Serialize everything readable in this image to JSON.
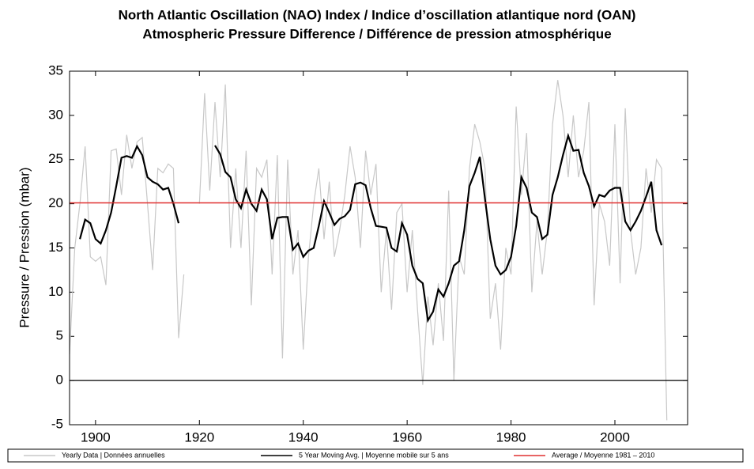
{
  "chart_data": {
    "type": "line",
    "title": "North Atlantic Oscillation (NAO) Index / Indice d’oscillation atlantique nord (OAN)",
    "subtitle": "Atmospheric Pressure Difference / Différence de pression atmosphérique",
    "y_label": "Pressure / Pression (mbar)",
    "x": [
      1895,
      1896,
      1897,
      1898,
      1899,
      1900,
      1901,
      1902,
      1903,
      1904,
      1905,
      1906,
      1907,
      1908,
      1909,
      1910,
      1911,
      1912,
      1913,
      1914,
      1915,
      1916,
      1917,
      1918,
      1919,
      1920,
      1921,
      1922,
      1923,
      1924,
      1925,
      1926,
      1927,
      1928,
      1929,
      1930,
      1931,
      1932,
      1933,
      1934,
      1935,
      1936,
      1937,
      1938,
      1939,
      1940,
      1941,
      1942,
      1943,
      1944,
      1945,
      1946,
      1947,
      1948,
      1949,
      1950,
      1951,
      1952,
      1953,
      1954,
      1955,
      1956,
      1957,
      1958,
      1959,
      1960,
      1961,
      1962,
      1963,
      1964,
      1965,
      1966,
      1967,
      1968,
      1969,
      1970,
      1971,
      1972,
      1973,
      1974,
      1975,
      1976,
      1977,
      1978,
      1979,
      1980,
      1981,
      1982,
      1983,
      1984,
      1985,
      1986,
      1987,
      1988,
      1989,
      1990,
      1991,
      1992,
      1993,
      1994,
      1995,
      1996,
      1997,
      1998,
      1999,
      2000,
      2001,
      2002,
      2003,
      2004,
      2005,
      2006,
      2007,
      2008,
      2009,
      2010
    ],
    "series": [
      {
        "name": "Yearly Data | Données annuelles",
        "color": "#c8c8c8",
        "values": [
          3,
          15,
          20,
          26.5,
          14,
          13.5,
          14,
          10.8,
          26,
          26.2,
          21,
          27.8,
          24,
          27,
          27.5,
          20,
          12.5,
          24,
          23.5,
          24.5,
          24,
          4.8,
          12,
          null,
          null,
          20,
          32.5,
          21.5,
          31.5,
          23,
          33.5,
          15,
          24,
          15,
          26,
          8.5,
          24,
          23,
          25,
          12,
          25.5,
          2.5,
          25,
          12,
          17,
          3.5,
          14,
          20,
          24,
          16,
          22.5,
          14,
          17,
          21,
          26.5,
          23,
          15,
          26,
          21,
          24.5,
          10,
          17,
          8,
          19,
          20,
          10,
          17,
          8,
          -0.5,
          9.5,
          4,
          11,
          4.5,
          21.5,
          0,
          14,
          12,
          24,
          29,
          27,
          24,
          7,
          11,
          3.5,
          15,
          12,
          31,
          21,
          28,
          10,
          18,
          12,
          17,
          29,
          34,
          30,
          23,
          30,
          23,
          26,
          31.5,
          8.5,
          20,
          18,
          13,
          29,
          11,
          30.8,
          17,
          12,
          15,
          24,
          19,
          25,
          24,
          -4.5
        ]
      },
      {
        "name": "5 Year Moving Avg. | Moyenne mobile sur 5 ans",
        "color": "#000000",
        "values": [
          null,
          null,
          16,
          18.2,
          17.8,
          16,
          15.5,
          17,
          19,
          22,
          25.2,
          25.4,
          25.2,
          26.5,
          25.5,
          23,
          22.5,
          22.2,
          21.6,
          21.8,
          20,
          17.8,
          null,
          null,
          null,
          null,
          null,
          null,
          26.6,
          25.6,
          23.6,
          23,
          20.5,
          19.5,
          21.6,
          20,
          19.2,
          21.6,
          20.5,
          16,
          18.4,
          18.5,
          18.5,
          14.8,
          15.5,
          14,
          14.7,
          15,
          17.5,
          20.3,
          19,
          17.6,
          18.3,
          18.6,
          19.3,
          22.2,
          22.4,
          22.1,
          19.5,
          17.5,
          17.4,
          17.3,
          15,
          14.6,
          17.8,
          16.5,
          13,
          11.5,
          11,
          6.8,
          7.8,
          10.3,
          9.5,
          11,
          13,
          13.5,
          17,
          22,
          23.5,
          25.3,
          20.5,
          16,
          13,
          12,
          12.5,
          14,
          17.5,
          23,
          21.8,
          19,
          18.5,
          16,
          16.5,
          21,
          23,
          25.5,
          27.7,
          26,
          26.1,
          23.5,
          22,
          19.7,
          21,
          20.8,
          21.5,
          21.8,
          21.8,
          18,
          17,
          18,
          19.2,
          20.8,
          22.5,
          17,
          15.3,
          null
        ]
      }
    ],
    "hline": {
      "name": "Average / Moyenne 1981 – 2010",
      "color": "#e03030",
      "value": 20.1
    },
    "zero_line": true,
    "xlim": [
      1895,
      2014
    ],
    "xticks": [
      1900,
      1920,
      1940,
      1960,
      1980,
      2000
    ],
    "ylim": [
      -5,
      35
    ],
    "yticks": [
      -5,
      0,
      5,
      10,
      15,
      20,
      25,
      30,
      35
    ]
  }
}
